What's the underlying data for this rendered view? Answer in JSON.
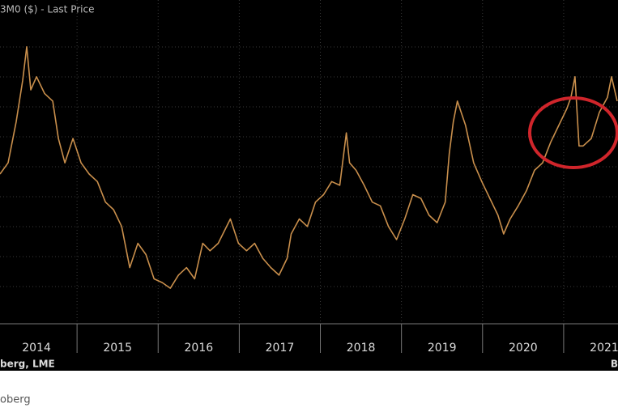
{
  "chart_data": {
    "type": "line",
    "title": "3M0 ($) - Last Price",
    "source": "berg, LME",
    "source_right": "B",
    "caption": "oberg",
    "x": [
      2014.05,
      2014.15,
      2014.25,
      2014.33,
      2014.38,
      2014.43,
      2014.5,
      2014.6,
      2014.7,
      2014.77,
      2014.85,
      2014.95,
      2015.05,
      2015.15,
      2015.25,
      2015.35,
      2015.45,
      2015.55,
      2015.65,
      2015.75,
      2015.85,
      2015.95,
      2016.05,
      2016.15,
      2016.25,
      2016.35,
      2016.45,
      2016.55,
      2016.64,
      2016.74,
      2016.89,
      2016.99,
      2017.09,
      2017.19,
      2017.29,
      2017.39,
      2017.49,
      2017.59,
      2017.64,
      2017.74,
      2017.84,
      2017.94,
      2018.04,
      2018.14,
      2018.24,
      2018.32,
      2018.36,
      2018.44,
      2018.54,
      2018.64,
      2018.74,
      2018.84,
      2018.94,
      2019.04,
      2019.14,
      2019.24,
      2019.34,
      2019.44,
      2019.54,
      2019.59,
      2019.64,
      2019.69,
      2019.79,
      2019.89,
      2019.99,
      2020.09,
      2020.19,
      2020.26,
      2020.34,
      2020.44,
      2020.54,
      2020.64,
      2020.74,
      2020.84,
      2020.94,
      2021.04,
      2021.09,
      2021.14,
      2021.19,
      2021.24,
      2021.34,
      2021.44,
      2021.54,
      2021.59,
      2021.66
    ],
    "series": [
      {
        "color": "#c98f4c",
        "values": [
          14200,
          14800,
          17000,
          19200,
          21000,
          18700,
          19400,
          18500,
          18100,
          16100,
          14800,
          16100,
          14800,
          14200,
          13800,
          12700,
          12300,
          11400,
          9200,
          10500,
          9900,
          8600,
          8400,
          8100,
          8800,
          9200,
          8600,
          10500,
          10100,
          10500,
          11800,
          10500,
          10100,
          10500,
          9700,
          9200,
          8800,
          9700,
          11000,
          11800,
          11400,
          12700,
          13100,
          13800,
          13600,
          16400,
          14800,
          14400,
          13600,
          12700,
          12500,
          11400,
          10700,
          11800,
          13100,
          12900,
          12000,
          11600,
          12700,
          15300,
          17000,
          18100,
          16800,
          14800,
          13800,
          12900,
          12000,
          11000,
          11800,
          12500,
          13300,
          14400,
          14800,
          15900,
          16800,
          17700,
          18300,
          19400,
          15700,
          15700,
          16100,
          17500,
          18300,
          19400,
          18100
        ]
      }
    ],
    "xlim": [
      2014.05,
      2021.67
    ],
    "xticks": [
      {
        "value": 2014.5,
        "label": "2014"
      },
      {
        "value": 2015.5,
        "label": "2015"
      },
      {
        "value": 2016.5,
        "label": "2016"
      },
      {
        "value": 2017.5,
        "label": "2017"
      },
      {
        "value": 2018.5,
        "label": "2018"
      },
      {
        "value": 2019.5,
        "label": "2019"
      },
      {
        "value": 2020.5,
        "label": "2020"
      },
      {
        "value": 2021.5,
        "label": "2021"
      }
    ],
    "ylim": [
      6200,
      23500
    ]
  }
}
